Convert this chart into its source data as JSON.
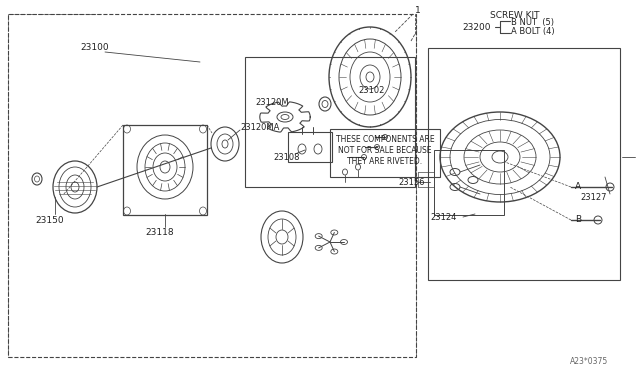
{
  "bg_color": "#f5f5f0",
  "line_color": "#444444",
  "text_color": "#222222",
  "diagram_ref": "A23*0375",
  "screw_kit_text": "SCREW KIT",
  "bolt_label": "A BOLT (4)",
  "nut_label": "B NUT  (5)",
  "part23200": "23200",
  "part23100": "23100",
  "part23150": "23150",
  "part23118": "23118",
  "part23120MA": "23120MA",
  "part23120M": "23120M",
  "part23102": "23102",
  "part23108": "23108",
  "part23156": "23156",
  "part23124": "23124",
  "part23127": "23127",
  "part1": "1",
  "labelA": "A",
  "labelB": "B",
  "riveted_lines": [
    "THESE COMPONENTS ARE",
    "NOT FOR SALE BECAUSE",
    "THEY ARE RIVETED."
  ]
}
